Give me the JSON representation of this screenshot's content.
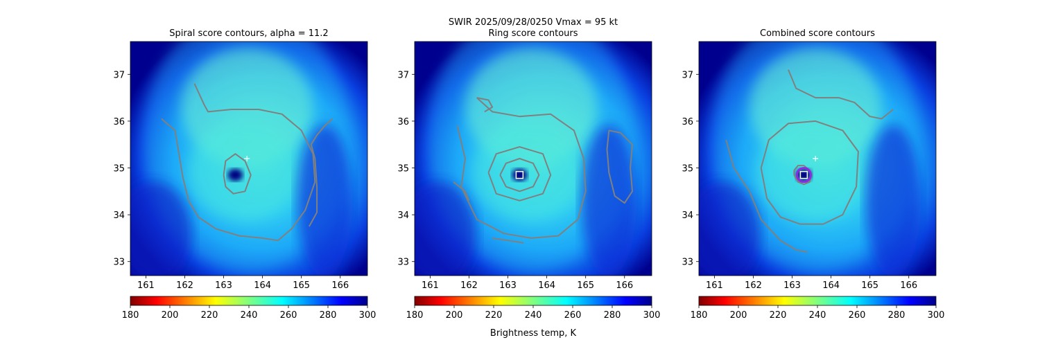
{
  "figure": {
    "suptitle_line1": "SWIR  2025/09/28/0250    Vmax = 95 kt",
    "colorbar_label": "Brightness temp, K",
    "colors": {
      "contour": "#808080",
      "center_marker": "#ffffff",
      "combined_ring": "#8a2be2",
      "eye": "#000080"
    }
  },
  "chart_data": [
    {
      "type": "heatmap",
      "title": "Spiral score contours, alpha = 11.2",
      "xlabel": "",
      "ylabel": "",
      "xlim": [
        160.6,
        166.7
      ],
      "ylim": [
        32.7,
        37.7
      ],
      "xticks": [
        "161",
        "162",
        "163",
        "164",
        "165",
        "166"
      ],
      "xtick_values": [
        161,
        162,
        163,
        164,
        165,
        166
      ],
      "yticks": [
        "33",
        "34",
        "35",
        "36",
        "37"
      ],
      "ytick_values": [
        33,
        34,
        35,
        36,
        37
      ],
      "colorbar": {
        "range": [
          180,
          300
        ],
        "ticks": [
          "180",
          "200",
          "220",
          "240",
          "260",
          "280",
          "300"
        ],
        "colormap": "jet_r"
      },
      "storm_center": [
        163.3,
        34.85
      ],
      "forecast_marker": [
        163.6,
        35.2
      ],
      "contours": [
        [
          [
            161.4,
            36.05
          ],
          [
            161.75,
            35.8
          ],
          [
            161.85,
            35.3
          ],
          [
            161.95,
            34.8
          ],
          [
            162.1,
            34.3
          ],
          [
            162.35,
            33.95
          ],
          [
            162.8,
            33.7
          ],
          [
            163.4,
            33.55
          ],
          [
            164.0,
            33.5
          ],
          [
            164.4,
            33.45
          ],
          [
            164.75,
            33.7
          ],
          [
            165.1,
            34.1
          ],
          [
            165.35,
            34.7
          ],
          [
            165.3,
            35.3
          ],
          [
            165.0,
            35.8
          ],
          [
            164.5,
            36.15
          ],
          [
            163.9,
            36.25
          ],
          [
            163.2,
            36.25
          ],
          [
            162.6,
            36.2
          ],
          [
            162.5,
            36.35
          ],
          [
            162.25,
            36.8
          ]
        ],
        [
          [
            163.0,
            34.85
          ],
          [
            163.05,
            35.15
          ],
          [
            163.3,
            35.3
          ],
          [
            163.55,
            35.15
          ],
          [
            163.7,
            34.85
          ],
          [
            163.55,
            34.5
          ],
          [
            163.25,
            34.45
          ],
          [
            163.05,
            34.6
          ],
          [
            163.0,
            34.85
          ]
        ],
        [
          [
            165.2,
            33.75
          ],
          [
            165.4,
            34.05
          ],
          [
            165.4,
            34.6
          ],
          [
            165.35,
            35.2
          ],
          [
            165.25,
            35.5
          ],
          [
            165.4,
            35.7
          ],
          [
            165.6,
            35.9
          ],
          [
            165.8,
            36.05
          ]
        ]
      ]
    },
    {
      "type": "heatmap",
      "title": "Ring score contours",
      "xlabel": "",
      "ylabel": "",
      "xlim": [
        160.6,
        166.7
      ],
      "ylim": [
        32.7,
        37.7
      ],
      "xticks": [
        "161",
        "162",
        "163",
        "164",
        "165",
        "166"
      ],
      "xtick_values": [
        161,
        162,
        163,
        164,
        165,
        166
      ],
      "yticks": [
        "33",
        "34",
        "35",
        "36",
        "37"
      ],
      "ytick_values": [
        33,
        34,
        35,
        36,
        37
      ],
      "colorbar": {
        "range": [
          180,
          300
        ],
        "ticks": [
          "180",
          "200",
          "220",
          "240",
          "260",
          "280",
          "300"
        ],
        "colormap": "jet_r"
      },
      "storm_center": [
        163.3,
        34.85
      ],
      "center_box": [
        163.3,
        34.85
      ],
      "contours": [
        [
          [
            162.8,
            34.85
          ],
          [
            162.95,
            35.1
          ],
          [
            163.3,
            35.2
          ],
          [
            163.65,
            35.1
          ],
          [
            163.8,
            34.85
          ],
          [
            163.65,
            34.6
          ],
          [
            163.3,
            34.5
          ],
          [
            162.95,
            34.6
          ],
          [
            162.8,
            34.85
          ]
        ],
        [
          [
            162.5,
            34.9
          ],
          [
            162.7,
            35.3
          ],
          [
            163.3,
            35.45
          ],
          [
            163.9,
            35.3
          ],
          [
            164.1,
            34.85
          ],
          [
            163.9,
            34.45
          ],
          [
            163.3,
            34.3
          ],
          [
            162.7,
            34.45
          ],
          [
            162.5,
            34.9
          ]
        ],
        [
          [
            161.7,
            35.9
          ],
          [
            161.9,
            35.2
          ],
          [
            161.8,
            34.6
          ],
          [
            162.2,
            33.9
          ],
          [
            162.9,
            33.6
          ],
          [
            163.6,
            33.5
          ],
          [
            164.3,
            33.55
          ],
          [
            164.8,
            33.9
          ],
          [
            165.0,
            34.5
          ],
          [
            164.95,
            35.2
          ],
          [
            164.7,
            35.8
          ],
          [
            164.1,
            36.15
          ],
          [
            163.3,
            36.1
          ],
          [
            162.6,
            36.2
          ],
          [
            162.2,
            36.5
          ]
        ],
        [
          [
            165.6,
            35.8
          ],
          [
            165.9,
            35.75
          ],
          [
            166.2,
            35.5
          ],
          [
            166.15,
            35.0
          ],
          [
            166.2,
            34.5
          ],
          [
            166.0,
            34.25
          ],
          [
            165.75,
            34.4
          ],
          [
            165.6,
            34.9
          ],
          [
            165.55,
            35.4
          ],
          [
            165.6,
            35.8
          ]
        ],
        [
          [
            162.2,
            36.5
          ],
          [
            162.5,
            36.45
          ],
          [
            162.6,
            36.3
          ],
          [
            162.4,
            36.2
          ]
        ],
        [
          [
            161.6,
            34.7
          ],
          [
            161.9,
            34.5
          ],
          [
            162.0,
            34.3
          ]
        ],
        [
          [
            162.6,
            33.5
          ],
          [
            163.0,
            33.45
          ],
          [
            163.4,
            33.4
          ]
        ]
      ]
    },
    {
      "type": "heatmap",
      "title": "Combined score contours",
      "xlabel": "",
      "ylabel": "",
      "xlim": [
        160.6,
        166.7
      ],
      "ylim": [
        32.7,
        37.7
      ],
      "xticks": [
        "161",
        "162",
        "163",
        "164",
        "165",
        "166"
      ],
      "xtick_values": [
        161,
        162,
        163,
        164,
        165,
        166
      ],
      "yticks": [
        "33",
        "34",
        "35",
        "36",
        "37"
      ],
      "ytick_values": [
        33,
        34,
        35,
        36,
        37
      ],
      "colorbar": {
        "range": [
          180,
          300
        ],
        "ticks": [
          "180",
          "200",
          "220",
          "240",
          "260",
          "280",
          "300"
        ],
        "colormap": "jet_r"
      },
      "storm_center": [
        163.3,
        34.85
      ],
      "forecast_marker": [
        163.6,
        35.2
      ],
      "center_box": [
        163.3,
        34.85
      ],
      "contours": [
        [
          [
            161.3,
            35.6
          ],
          [
            161.5,
            35.0
          ],
          [
            161.9,
            34.5
          ],
          [
            162.2,
            33.9
          ],
          [
            162.7,
            33.45
          ],
          [
            163.1,
            33.25
          ],
          [
            163.4,
            33.2
          ]
        ],
        [
          [
            162.2,
            35.0
          ],
          [
            162.4,
            35.6
          ],
          [
            162.9,
            35.95
          ],
          [
            163.6,
            36.0
          ],
          [
            164.3,
            35.8
          ],
          [
            164.7,
            35.35
          ],
          [
            164.65,
            34.6
          ],
          [
            164.3,
            34.0
          ],
          [
            163.8,
            33.8
          ],
          [
            163.2,
            33.8
          ],
          [
            162.7,
            33.95
          ],
          [
            162.35,
            34.35
          ],
          [
            162.2,
            35.0
          ]
        ],
        [
          [
            162.9,
            37.1
          ],
          [
            163.1,
            36.7
          ],
          [
            163.6,
            36.5
          ],
          [
            164.2,
            36.5
          ],
          [
            164.6,
            36.4
          ],
          [
            165.0,
            36.1
          ],
          [
            165.3,
            36.05
          ],
          [
            165.6,
            36.25
          ]
        ],
        [
          [
            163.05,
            34.95
          ],
          [
            163.15,
            35.05
          ],
          [
            163.3,
            35.05
          ],
          [
            163.45,
            34.95
          ],
          [
            163.5,
            34.85
          ],
          [
            163.45,
            34.7
          ],
          [
            163.3,
            34.65
          ],
          [
            163.15,
            34.7
          ],
          [
            163.05,
            34.85
          ],
          [
            163.05,
            34.95
          ]
        ]
      ]
    }
  ]
}
